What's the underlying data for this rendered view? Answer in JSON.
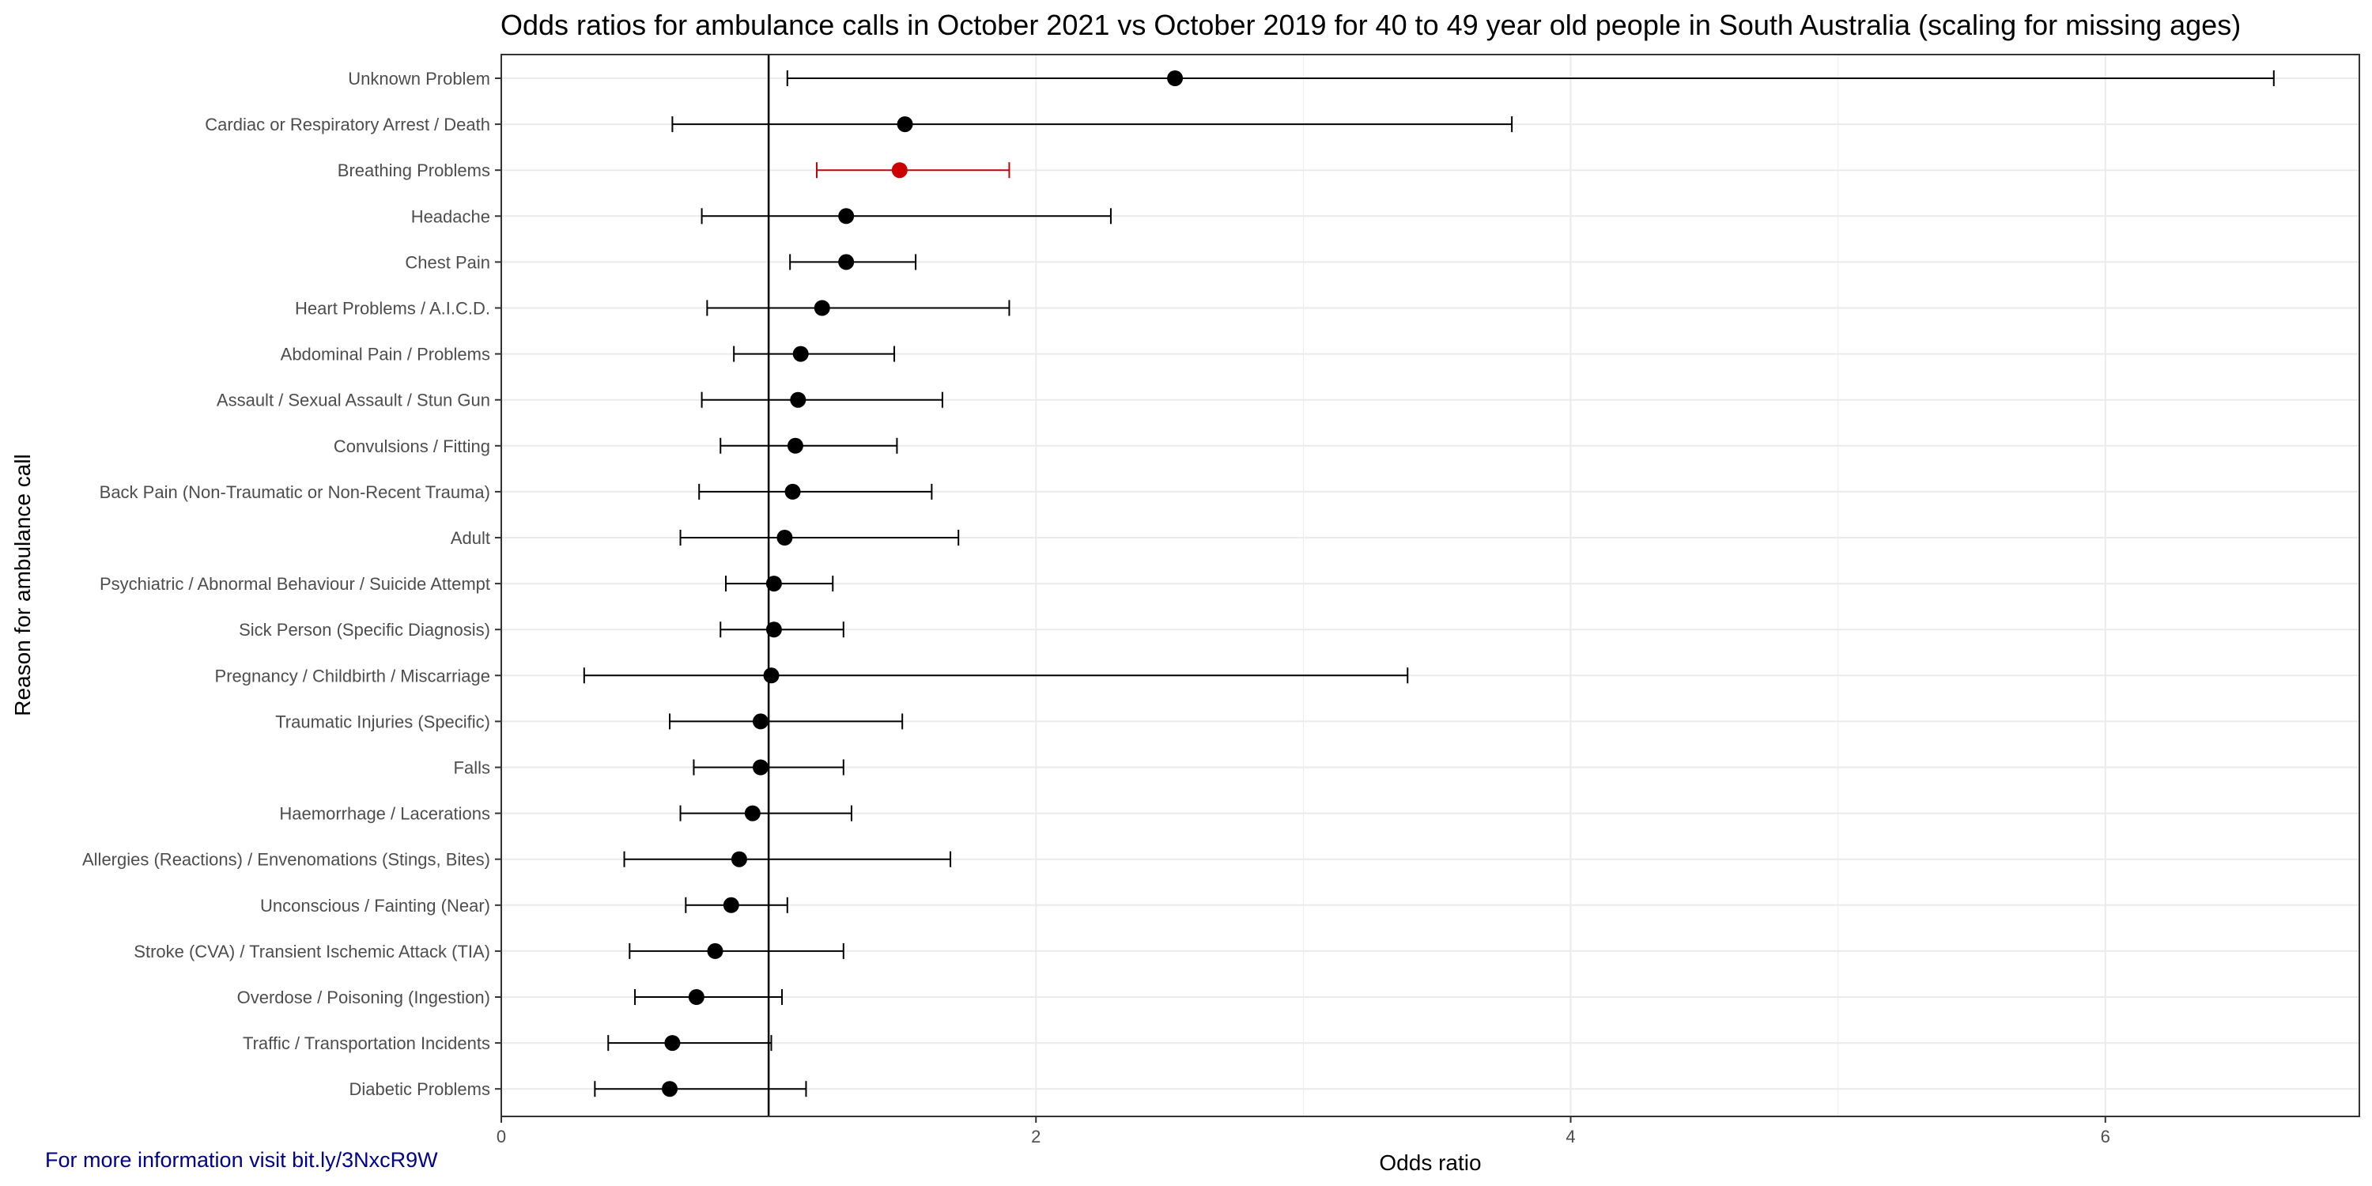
{
  "chart_data": {
    "type": "scatter",
    "subtype": "forest-plot",
    "title": "Odds ratios for ambulance calls in October 2021 vs October 2019 for 40 to 49 year old people in South Australia (scaling for missing ages)",
    "xlabel": "Odds ratio",
    "ylabel": "Reason for ambulance call",
    "xlim": [
      0,
      6.95
    ],
    "x_ticks": [
      0,
      2,
      4,
      6
    ],
    "reference_line": 1,
    "grid": true,
    "colors": {
      "default": "#000000",
      "highlight": "#cc0000",
      "grid": "#ebebeb",
      "footer": "#00008b"
    },
    "categories": [
      "Unknown Problem",
      "Cardiac or Respiratory Arrest / Death",
      "Breathing Problems",
      "Headache",
      "Chest Pain",
      "Heart Problems / A.I.C.D.",
      "Abdominal Pain / Problems",
      "Assault / Sexual Assault / Stun Gun",
      "Convulsions / Fitting",
      "Back Pain (Non-Traumatic or Non-Recent Trauma)",
      "Adult",
      "Psychiatric / Abnormal Behaviour / Suicide Attempt",
      "Sick Person (Specific Diagnosis)",
      "Pregnancy / Childbirth / Miscarriage",
      "Traumatic Injuries (Specific)",
      "Falls",
      "Haemorrhage / Lacerations",
      "Allergies (Reactions) / Envenomations (Stings, Bites)",
      "Unconscious / Fainting (Near)",
      "Stroke (CVA) / Transient Ischemic Attack (TIA)",
      "Overdose / Poisoning (Ingestion)",
      "Traffic / Transportation Incidents",
      "Diabetic Problems"
    ],
    "estimate": [
      2.52,
      1.51,
      1.49,
      1.29,
      1.29,
      1.2,
      1.12,
      1.11,
      1.1,
      1.09,
      1.06,
      1.02,
      1.02,
      1.01,
      0.97,
      0.97,
      0.94,
      0.89,
      0.86,
      0.8,
      0.73,
      0.64,
      0.63
    ],
    "lower": [
      1.07,
      0.64,
      1.18,
      0.75,
      1.08,
      0.77,
      0.87,
      0.75,
      0.82,
      0.74,
      0.67,
      0.84,
      0.82,
      0.31,
      0.63,
      0.72,
      0.67,
      0.46,
      0.69,
      0.48,
      0.5,
      0.4,
      0.35
    ],
    "upper": [
      6.63,
      3.78,
      1.9,
      2.28,
      1.55,
      1.9,
      1.47,
      1.65,
      1.48,
      1.61,
      1.71,
      1.24,
      1.28,
      3.39,
      1.5,
      1.28,
      1.31,
      1.68,
      1.07,
      1.28,
      1.05,
      1.01,
      1.14
    ],
    "highlight": [
      "Breathing Problems"
    ]
  },
  "footer": {
    "note": "For more information visit bit.ly/3NxcR9W"
  }
}
